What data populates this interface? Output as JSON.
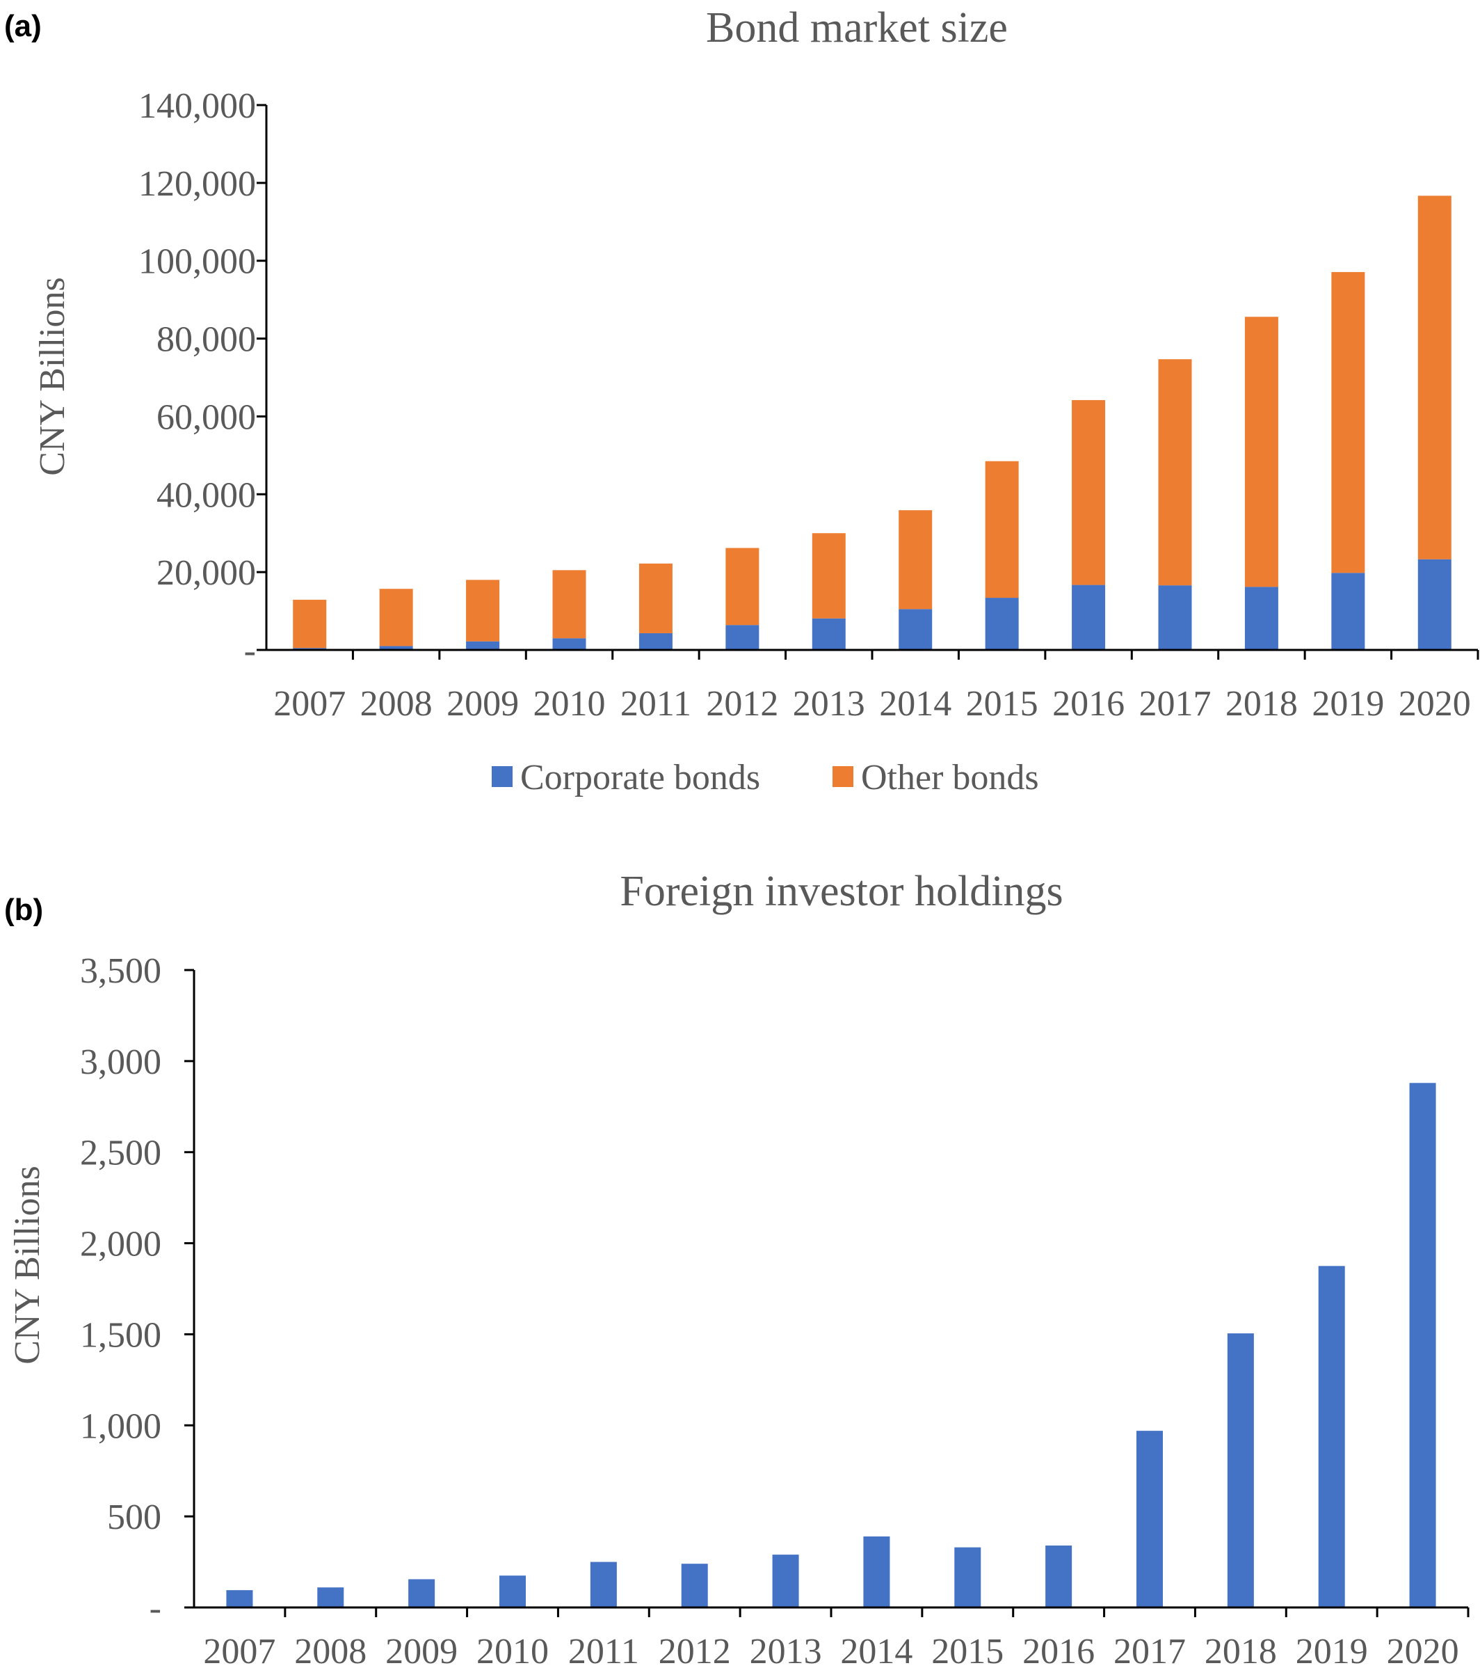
{
  "panels": {
    "a": "(a)",
    "b": "(b)"
  },
  "chart_data": [
    {
      "type": "bar",
      "stacked": true,
      "title": "Bond market size",
      "xlabel": "",
      "ylabel": "CNY Billions",
      "ylim": [
        0,
        140000
      ],
      "yticks": [
        0,
        20000,
        40000,
        60000,
        80000,
        100000,
        120000,
        140000
      ],
      "ytick_labels": [
        "-",
        "20,000",
        "40,000",
        "60,000",
        "80,000",
        "100,000",
        "120,000",
        "140,000"
      ],
      "categories": [
        "2007",
        "2008",
        "2009",
        "2010",
        "2011",
        "2012",
        "2013",
        "2014",
        "2015",
        "2016",
        "2017",
        "2018",
        "2019",
        "2020"
      ],
      "series": [
        {
          "name": "Corporate bonds",
          "color": "#4472C4",
          "values": [
            500,
            1000,
            2200,
            3000,
            4300,
            6400,
            8100,
            10500,
            13400,
            16700,
            16600,
            16200,
            19800,
            23300
          ]
        },
        {
          "name": "Other bonds",
          "color": "#ED7D31",
          "values": [
            12400,
            14700,
            15800,
            17500,
            17900,
            19800,
            21900,
            25400,
            35100,
            47500,
            58100,
            69400,
            77300,
            93400
          ]
        }
      ],
      "grid": false,
      "legend": "bottom"
    },
    {
      "type": "bar",
      "title": "Foreign investor holdings",
      "xlabel": "",
      "ylabel": "CNY Billions",
      "ylim": [
        0,
        3500
      ],
      "yticks": [
        0,
        500,
        1000,
        1500,
        2000,
        2500,
        3000,
        3500
      ],
      "ytick_labels": [
        "-",
        "500",
        "1,000",
        "1,500",
        "2,000",
        "2,500",
        "3,000",
        "3,500"
      ],
      "categories": [
        "2007",
        "2008",
        "2009",
        "2010",
        "2011",
        "2012",
        "2013",
        "2014",
        "2015",
        "2016",
        "2017",
        "2018",
        "2019",
        "2020"
      ],
      "series": [
        {
          "color": "#4472C4",
          "values": [
            95,
            110,
            155,
            175,
            250,
            240,
            290,
            390,
            330,
            340,
            970,
            1505,
            1875,
            2880
          ]
        }
      ],
      "grid": false,
      "legend": "none"
    }
  ]
}
